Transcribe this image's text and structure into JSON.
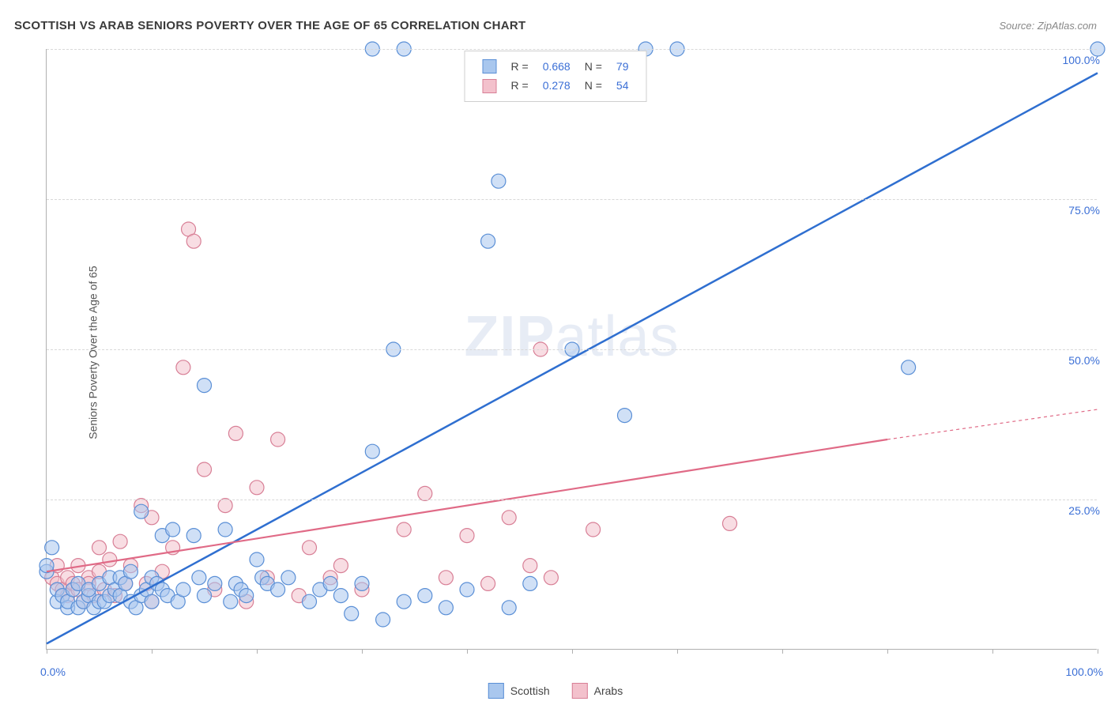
{
  "title": "SCOTTISH VS ARAB SENIORS POVERTY OVER THE AGE OF 65 CORRELATION CHART",
  "source_label": "Source: ZipAtlas.com",
  "watermark": {
    "bold": "ZIP",
    "rest": "atlas"
  },
  "y_axis_label": "Seniors Poverty Over the Age of 65",
  "chart": {
    "type": "scatter",
    "background_color": "#ffffff",
    "grid_color": "#d8d8d8",
    "axis_color": "#b0b0b0",
    "xlim": [
      0,
      100
    ],
    "ylim": [
      0,
      100
    ],
    "x_ticks": [
      0,
      10,
      20,
      30,
      40,
      50,
      60,
      70,
      80,
      90,
      100
    ],
    "y_ticks": [
      25,
      50,
      75,
      100
    ],
    "x_tick_labels": {
      "0": "0.0%",
      "100": "100.0%"
    },
    "y_tick_labels": {
      "25": "25.0%",
      "50": "50.0%",
      "75": "75.0%",
      "100": "100.0%"
    },
    "tick_label_color": "#3b6fd6",
    "tick_label_fontsize": 14,
    "point_radius": 9,
    "point_opacity": 0.55,
    "series": [
      {
        "name": "Scottish",
        "fill": "#a9c7ee",
        "stroke": "#5a8fd6",
        "line_color": "#2f6fd0",
        "line_width": 2.5,
        "regression": {
          "x1": 0,
          "y1": 1,
          "x2": 100,
          "y2": 96
        },
        "R": "0.668",
        "N": "79",
        "points": [
          [
            0,
            13
          ],
          [
            0,
            14
          ],
          [
            0.5,
            17
          ],
          [
            1,
            8
          ],
          [
            1,
            10
          ],
          [
            1.5,
            9
          ],
          [
            2,
            7
          ],
          [
            2,
            8
          ],
          [
            2.5,
            10
          ],
          [
            3,
            7
          ],
          [
            3,
            11
          ],
          [
            3.5,
            8
          ],
          [
            4,
            9
          ],
          [
            4,
            10
          ],
          [
            4.5,
            7
          ],
          [
            5,
            8
          ],
          [
            5,
            11
          ],
          [
            5.5,
            8
          ],
          [
            6,
            9
          ],
          [
            6,
            12
          ],
          [
            6.5,
            10
          ],
          [
            7,
            12
          ],
          [
            7,
            9
          ],
          [
            7.5,
            11
          ],
          [
            8,
            8
          ],
          [
            8,
            13
          ],
          [
            8.5,
            7
          ],
          [
            9,
            9
          ],
          [
            9,
            23
          ],
          [
            9.5,
            10
          ],
          [
            10,
            12
          ],
          [
            10,
            8
          ],
          [
            10.5,
            11
          ],
          [
            11,
            10
          ],
          [
            11,
            19
          ],
          [
            11.5,
            9
          ],
          [
            12,
            20
          ],
          [
            12.5,
            8
          ],
          [
            13,
            10
          ],
          [
            14,
            19
          ],
          [
            14.5,
            12
          ],
          [
            15,
            9
          ],
          [
            15,
            44
          ],
          [
            16,
            11
          ],
          [
            17,
            20
          ],
          [
            17.5,
            8
          ],
          [
            18,
            11
          ],
          [
            18.5,
            10
          ],
          [
            19,
            9
          ],
          [
            20,
            15
          ],
          [
            20.5,
            12
          ],
          [
            21,
            11
          ],
          [
            22,
            10
          ],
          [
            23,
            12
          ],
          [
            25,
            8
          ],
          [
            26,
            10
          ],
          [
            27,
            11
          ],
          [
            28,
            9
          ],
          [
            29,
            6
          ],
          [
            30,
            11
          ],
          [
            31,
            33
          ],
          [
            31,
            100
          ],
          [
            32,
            5
          ],
          [
            33,
            50
          ],
          [
            34,
            8
          ],
          [
            34,
            100
          ],
          [
            36,
            9
          ],
          [
            38,
            7
          ],
          [
            40,
            10
          ],
          [
            42,
            68
          ],
          [
            43,
            78
          ],
          [
            44,
            7
          ],
          [
            46,
            11
          ],
          [
            50,
            50
          ],
          [
            55,
            39
          ],
          [
            57,
            100
          ],
          [
            60,
            100
          ],
          [
            82,
            47
          ],
          [
            100,
            100
          ]
        ]
      },
      {
        "name": "Arabs",
        "fill": "#f3c1cc",
        "stroke": "#d87f96",
        "line_color": "#e06a86",
        "line_width": 2.2,
        "regression": {
          "x1": 0,
          "y1": 13,
          "x2": 80,
          "y2": 35
        },
        "regression_extend": {
          "x1": 80,
          "y1": 35,
          "x2": 100,
          "y2": 40
        },
        "R": "0.278",
        "N": "54",
        "points": [
          [
            0.5,
            12
          ],
          [
            1,
            11
          ],
          [
            1,
            14
          ],
          [
            1.5,
            10
          ],
          [
            2,
            12
          ],
          [
            2,
            9
          ],
          [
            2.5,
            11
          ],
          [
            3,
            14
          ],
          [
            3,
            10
          ],
          [
            3.5,
            8
          ],
          [
            4,
            12
          ],
          [
            4,
            11
          ],
          [
            4.5,
            9
          ],
          [
            5,
            13
          ],
          [
            5,
            17
          ],
          [
            5.5,
            10
          ],
          [
            6,
            15
          ],
          [
            6.5,
            9
          ],
          [
            7,
            18
          ],
          [
            7.5,
            11
          ],
          [
            8,
            14
          ],
          [
            9,
            24
          ],
          [
            9.5,
            11
          ],
          [
            10,
            8
          ],
          [
            10,
            22
          ],
          [
            11,
            13
          ],
          [
            12,
            17
          ],
          [
            13,
            47
          ],
          [
            13.5,
            70
          ],
          [
            14,
            68
          ],
          [
            15,
            30
          ],
          [
            16,
            10
          ],
          [
            17,
            24
          ],
          [
            18,
            36
          ],
          [
            19,
            8
          ],
          [
            20,
            27
          ],
          [
            21,
            12
          ],
          [
            22,
            35
          ],
          [
            24,
            9
          ],
          [
            25,
            17
          ],
          [
            27,
            12
          ],
          [
            28,
            14
          ],
          [
            30,
            10
          ],
          [
            34,
            20
          ],
          [
            36,
            26
          ],
          [
            38,
            12
          ],
          [
            40,
            19
          ],
          [
            42,
            11
          ],
          [
            44,
            22
          ],
          [
            46,
            14
          ],
          [
            47,
            50
          ],
          [
            48,
            12
          ],
          [
            52,
            20
          ],
          [
            65,
            21
          ]
        ]
      }
    ]
  },
  "legend_top": {
    "rows": [
      {
        "swatch_fill": "#a9c7ee",
        "swatch_stroke": "#5a8fd6",
        "r_label": "R =",
        "r_value": "0.668",
        "n_label": "N =",
        "n_value": "79"
      },
      {
        "swatch_fill": "#f3c1cc",
        "swatch_stroke": "#d87f96",
        "r_label": "R =",
        "r_value": "0.278",
        "n_label": "N =",
        "n_value": "54"
      }
    ]
  },
  "legend_bottom": {
    "items": [
      {
        "swatch_fill": "#a9c7ee",
        "swatch_stroke": "#5a8fd6",
        "label": "Scottish"
      },
      {
        "swatch_fill": "#f3c1cc",
        "swatch_stroke": "#d87f96",
        "label": "Arabs"
      }
    ]
  }
}
